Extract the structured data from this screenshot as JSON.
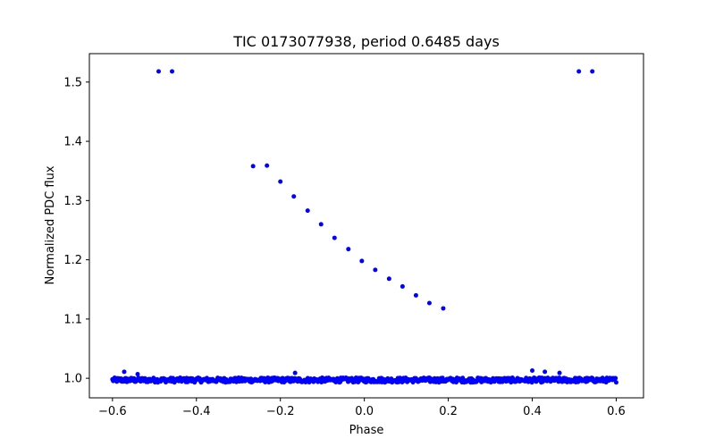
{
  "chart_data": {
    "type": "scatter",
    "title": "TIC 0173077938, period 0.6485 days",
    "xlabel": "Phase",
    "ylabel": "Normalized PDC flux",
    "xlim": [
      -0.655,
      0.665
    ],
    "ylim": [
      0.967,
      1.548
    ],
    "xticks": [
      -0.6,
      -0.4,
      -0.2,
      0.0,
      0.2,
      0.4,
      0.6
    ],
    "xtick_labels": [
      "−0.6",
      "−0.4",
      "−0.2",
      "0.0",
      "0.2",
      "0.4",
      "0.6"
    ],
    "yticks": [
      1.0,
      1.1,
      1.2,
      1.3,
      1.4,
      1.5
    ],
    "ytick_labels": [
      "1.0",
      "1.1",
      "1.2",
      "1.3",
      "1.4",
      "1.5"
    ],
    "grid": false,
    "legend": "none",
    "marker_color": "#0000ff",
    "baseline_band": {
      "x_range": [
        -0.6,
        0.6
      ],
      "y_center": 0.997,
      "y_spread": 0.004
    },
    "series": [
      {
        "x": [
          -0.49,
          -0.458,
          0.511,
          0.543,
          -0.265,
          -0.232,
          -0.2,
          -0.168,
          -0.135,
          -0.103,
          -0.071,
          -0.038,
          -0.006,
          0.026,
          0.059,
          0.091,
          0.123,
          0.155,
          0.188,
          -0.572,
          -0.54,
          -0.165,
          0.4,
          0.43,
          0.465
        ],
        "y": [
          1.518,
          1.518,
          1.518,
          1.518,
          1.358,
          1.359,
          1.332,
          1.307,
          1.283,
          1.26,
          1.237,
          1.218,
          1.198,
          1.183,
          1.168,
          1.155,
          1.14,
          1.127,
          1.118,
          1.011,
          1.007,
          1.009,
          1.013,
          1.011,
          1.009
        ]
      }
    ]
  }
}
